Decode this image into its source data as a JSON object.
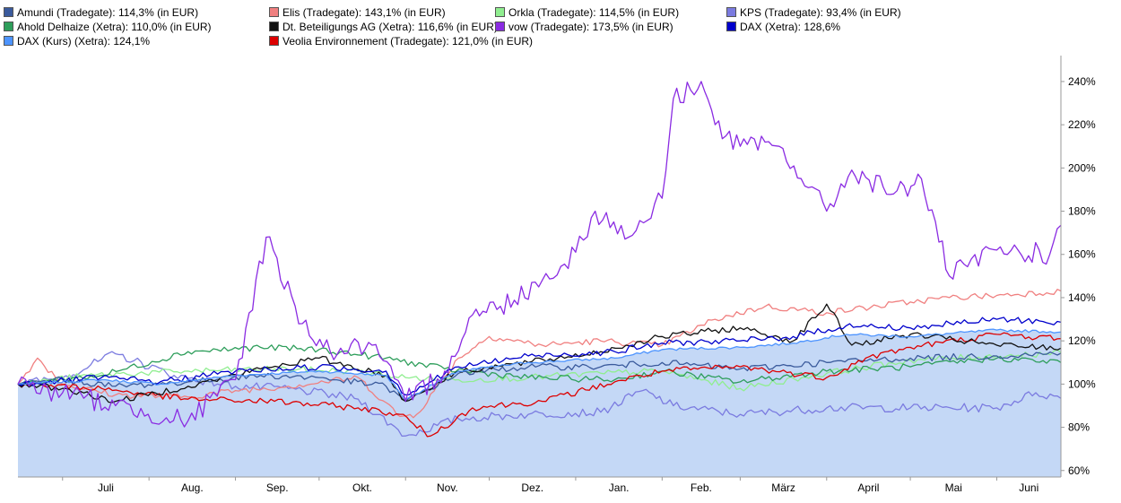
{
  "chart_data": {
    "type": "line",
    "title": "",
    "xlabel": "",
    "ylabel": "",
    "y_unit": "%",
    "ylim": [
      57,
      252
    ],
    "yticks": [
      60,
      80,
      100,
      120,
      140,
      160,
      180,
      200,
      220,
      240
    ],
    "ytick_labels": [
      "60%",
      "80%",
      "100%",
      "120%",
      "140%",
      "160%",
      "180%",
      "200%",
      "220%",
      "240%"
    ],
    "x_range": [
      "2024-06-15",
      "2025-06-24"
    ],
    "months": [
      {
        "label": "Juli",
        "date": "2024-07-01"
      },
      {
        "label": "Aug.",
        "date": "2024-08-01"
      },
      {
        "label": "Sep.",
        "date": "2024-09-01"
      },
      {
        "label": "Okt.",
        "date": "2024-10-01"
      },
      {
        "label": "Nov.",
        "date": "2024-11-01"
      },
      {
        "label": "Dez.",
        "date": "2024-12-01"
      },
      {
        "label": "Jan.",
        "date": "2025-01-01"
      },
      {
        "label": "Feb.",
        "date": "2025-02-01"
      },
      {
        "label": "März",
        "date": "2025-03-01"
      },
      {
        "label": "April",
        "date": "2025-04-01"
      },
      {
        "label": "Mai",
        "date": "2025-05-01"
      },
      {
        "label": "Juni",
        "date": "2025-06-01"
      }
    ],
    "grid": false,
    "legend_position": "top",
    "series": [
      {
        "name": "Amundi (Tradegate): 114,3% (in EUR)",
        "color": "#3a5a9c",
        "x": [
          "2024-06-15",
          "2024-07-01",
          "2024-07-20",
          "2024-08-15",
          "2024-09-10",
          "2024-10-01",
          "2024-10-25",
          "2024-11-01",
          "2024-11-20",
          "2024-12-15",
          "2025-01-10",
          "2025-02-01",
          "2025-03-01",
          "2025-04-01",
          "2025-05-01",
          "2025-06-01",
          "2025-06-24"
        ],
        "y": [
          100,
          102,
          99,
          101,
          104,
          103,
          99,
          92,
          105,
          108,
          108,
          110,
          107,
          110,
          112,
          113,
          114.3
        ]
      },
      {
        "name": "Elis (Tradegate): 143,1% (in EUR)",
        "color": "#f08080",
        "x": [
          "2024-06-15",
          "2024-06-22",
          "2024-07-01",
          "2024-07-20",
          "2024-08-15",
          "2024-09-01",
          "2024-09-20",
          "2024-10-15",
          "2024-10-30",
          "2024-11-05",
          "2024-11-20",
          "2024-12-01",
          "2024-12-20",
          "2025-01-10",
          "2025-02-01",
          "2025-02-20",
          "2025-03-10",
          "2025-04-01",
          "2025-05-01",
          "2025-05-15",
          "2025-06-01",
          "2025-06-24"
        ],
        "y": [
          100,
          112,
          100,
          95,
          94,
          97,
          99,
          103,
          85,
          86,
          112,
          122,
          118,
          120,
          118,
          130,
          136,
          133,
          138,
          140,
          141,
          143.1
        ]
      },
      {
        "name": "Orkla (Tradegate): 114,5% (in EUR)",
        "color": "#90ee90",
        "x": [
          "2024-06-15",
          "2024-07-10",
          "2024-08-15",
          "2024-09-15",
          "2024-10-15",
          "2024-11-01",
          "2024-11-20",
          "2024-12-15",
          "2025-01-10",
          "2025-02-01",
          "2025-03-01",
          "2025-04-01",
          "2025-05-01",
          "2025-06-01",
          "2025-06-24"
        ],
        "y": [
          100,
          104,
          106,
          107,
          106,
          103,
          102,
          103,
          105,
          106,
          98,
          105,
          111,
          113,
          114.5
        ]
      },
      {
        "name": "KPS (Tradegate): 93,4% (in EUR)",
        "color": "#7b7be0",
        "x": [
          "2024-06-15",
          "2024-07-01",
          "2024-07-20",
          "2024-08-10",
          "2024-09-01",
          "2024-09-20",
          "2024-10-15",
          "2024-11-01",
          "2024-11-20",
          "2024-12-15",
          "2025-01-10",
          "2025-01-25",
          "2025-02-05",
          "2025-03-01",
          "2025-04-01",
          "2025-05-01",
          "2025-06-01",
          "2025-06-15",
          "2025-06-24"
        ],
        "y": [
          100,
          103,
          114,
          104,
          99,
          98,
          93,
          76,
          84,
          86,
          87,
          97,
          90,
          86,
          89,
          89,
          89,
          96,
          93.4
        ]
      },
      {
        "name": "Ahold Delhaize (Xetra): 110,0% (in EUR)",
        "color": "#2e9e5b",
        "x": [
          "2024-06-15",
          "2024-07-15",
          "2024-08-15",
          "2024-09-10",
          "2024-10-01",
          "2024-10-25",
          "2024-11-15",
          "2024-12-15",
          "2025-01-15",
          "2025-02-01",
          "2025-03-01",
          "2025-04-01",
          "2025-05-01",
          "2025-06-01",
          "2025-06-24"
        ],
        "y": [
          100,
          104,
          115,
          117,
          116,
          112,
          107,
          103,
          102,
          106,
          101,
          106,
          108,
          112,
          110.0
        ]
      },
      {
        "name": "Dt. Beteiligungs AG (Xetra): 116,6% (in EUR)",
        "color": "#111111",
        "x": [
          "2024-06-15",
          "2024-07-01",
          "2024-07-20",
          "2024-08-15",
          "2024-09-10",
          "2024-10-01",
          "2024-10-25",
          "2024-11-01",
          "2024-11-20",
          "2024-12-15",
          "2025-01-10",
          "2025-02-01",
          "2025-03-01",
          "2025-03-20",
          "2025-04-01",
          "2025-04-10",
          "2025-05-01",
          "2025-06-01",
          "2025-06-24"
        ],
        "y": [
          100,
          98,
          92,
          99,
          107,
          112,
          104,
          92,
          106,
          110,
          115,
          122,
          126,
          120,
          137,
          118,
          123,
          118,
          116.6
        ]
      },
      {
        "name": "vow (Tradegate): 173,5% (in EUR)",
        "color": "#8a2be2",
        "x": [
          "2024-06-15",
          "2024-07-01",
          "2024-07-20",
          "2024-08-15",
          "2024-09-01",
          "2024-09-12",
          "2024-09-25",
          "2024-10-05",
          "2024-10-20",
          "2024-11-01",
          "2024-11-15",
          "2024-11-25",
          "2024-12-05",
          "2024-12-20",
          "2025-01-01",
          "2025-01-08",
          "2025-01-20",
          "2025-02-01",
          "2025-02-05",
          "2025-02-15",
          "2025-02-20",
          "2025-03-01",
          "2025-03-15",
          "2025-04-01",
          "2025-04-10",
          "2025-04-25",
          "2025-05-05",
          "2025-05-15",
          "2025-06-01",
          "2025-06-20",
          "2025-06-24"
        ],
        "y": [
          100,
          96,
          90,
          83,
          102,
          168,
          128,
          115,
          118,
          92,
          106,
          132,
          136,
          148,
          161,
          180,
          168,
          186,
          232,
          240,
          220,
          210,
          210,
          180,
          199,
          188,
          195,
          150,
          162,
          160,
          173.5
        ]
      },
      {
        "name": "DAX (Xetra): 128,6%",
        "color": "#0000cc",
        "x": [
          "2024-06-15",
          "2024-07-15",
          "2024-08-05",
          "2024-09-01",
          "2024-10-01",
          "2024-10-25",
          "2024-11-01",
          "2024-11-20",
          "2024-12-15",
          "2025-01-15",
          "2025-02-01",
          "2025-03-01",
          "2025-03-20",
          "2025-04-08",
          "2025-05-01",
          "2025-06-01",
          "2025-06-24"
        ],
        "y": [
          100,
          103,
          101,
          106,
          108,
          106,
          95,
          108,
          113,
          115,
          119,
          120,
          122,
          127,
          126,
          130,
          128.6
        ]
      },
      {
        "name": "DAX (Kurs) (Xetra): 124,1%",
        "color": "#4d94ff",
        "x": [
          "2024-06-15",
          "2024-07-15",
          "2024-08-05",
          "2024-09-01",
          "2024-10-01",
          "2024-10-25",
          "2024-11-01",
          "2024-11-20",
          "2024-12-15",
          "2025-01-15",
          "2025-02-01",
          "2025-03-01",
          "2025-03-20",
          "2025-04-08",
          "2025-05-01",
          "2025-06-01",
          "2025-06-24"
        ],
        "y": [
          100,
          102,
          100,
          104,
          106,
          104,
          93,
          106,
          110,
          112,
          116,
          117,
          119,
          123,
          122,
          125,
          124.1
        ]
      },
      {
        "name": "Veolia Environnement (Tradegate): 121,0% (in EUR)",
        "color": "#dd0000",
        "x": [
          "2024-06-15",
          "2024-07-15",
          "2024-08-15",
          "2024-09-15",
          "2024-10-15",
          "2024-10-30",
          "2024-11-10",
          "2024-11-25",
          "2024-12-20",
          "2025-01-15",
          "2025-02-01",
          "2025-03-01",
          "2025-04-01",
          "2025-04-15",
          "2025-05-01",
          "2025-06-01",
          "2025-06-24"
        ],
        "y": [
          100,
          98,
          93,
          92,
          89,
          86,
          76,
          89,
          92,
          101,
          106,
          108,
          103,
          112,
          117,
          123,
          121.0
        ]
      }
    ]
  }
}
